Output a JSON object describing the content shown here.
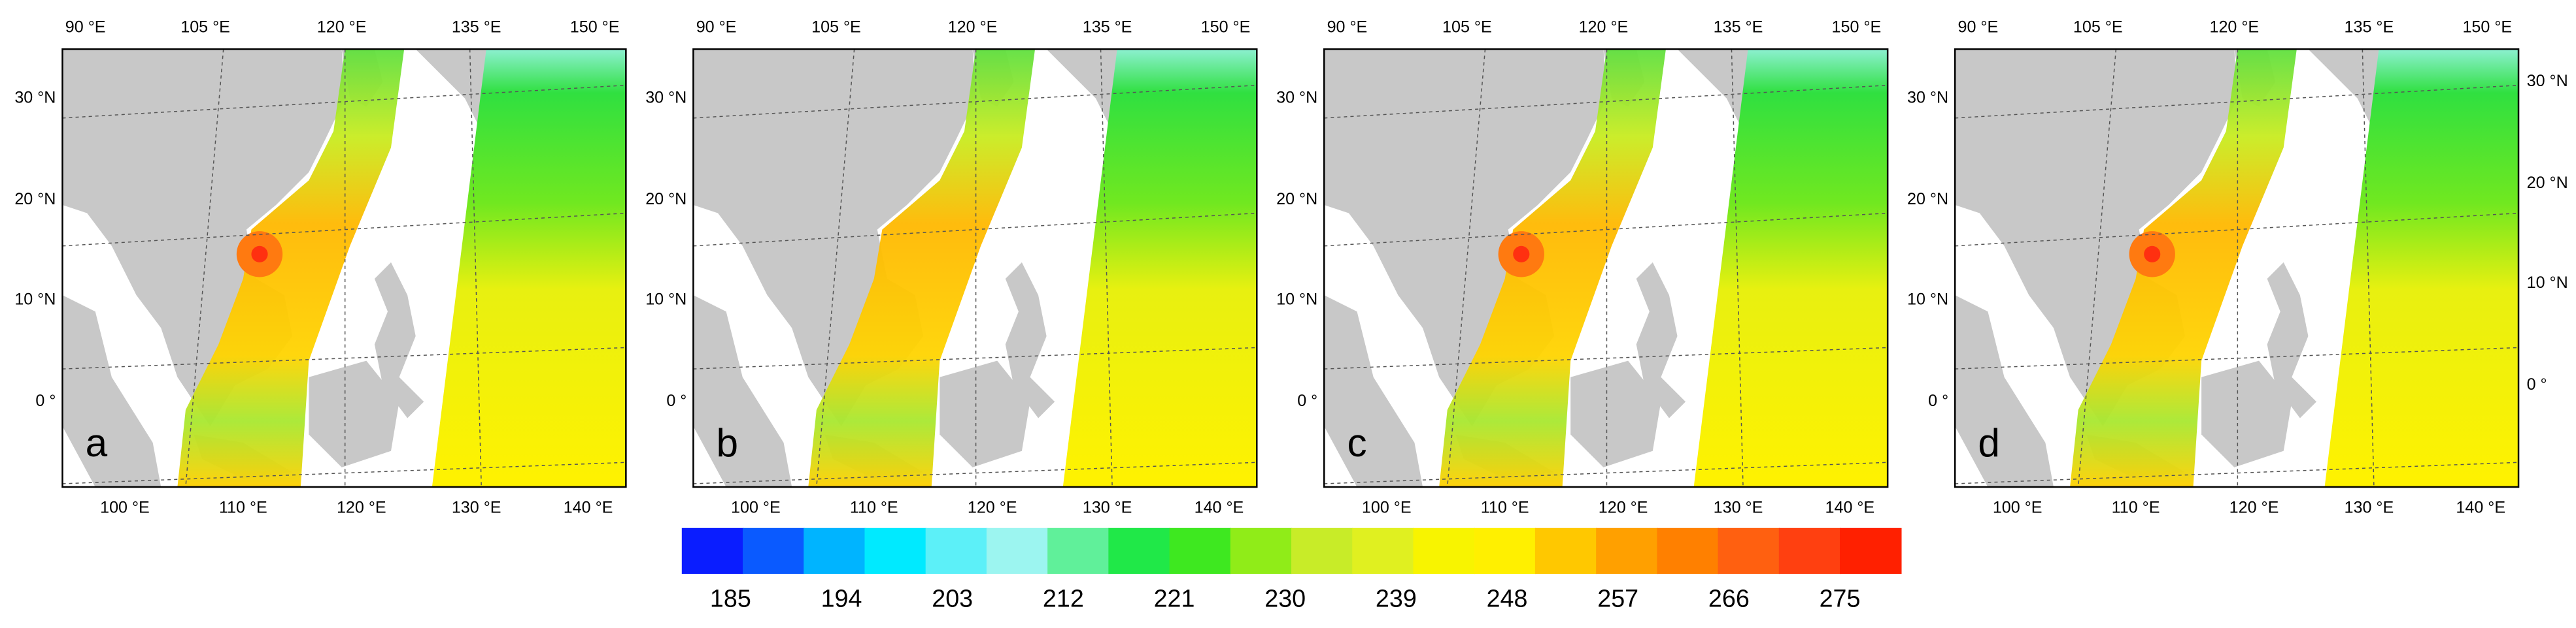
{
  "panels": [
    {
      "label": "a"
    },
    {
      "label": "b"
    },
    {
      "label": "c"
    },
    {
      "label": "d"
    }
  ],
  "axes": {
    "top": [
      "90 °E",
      "105 °E",
      "120 °E",
      "135 °E",
      "150 °E"
    ],
    "bottom": [
      "100 °E",
      "110 °E",
      "120 °E",
      "130 °E",
      "140 °E"
    ],
    "left": [
      "30 °N",
      "20 °N",
      "10 °N",
      "0 °"
    ],
    "right": [
      "30 °N",
      "20 °N",
      "10 °N",
      "0 °"
    ]
  },
  "colorbar": {
    "ticks": [
      185,
      194,
      203,
      212,
      221,
      230,
      239,
      248,
      257,
      266,
      275
    ],
    "colors": [
      "#0a1dff",
      "#0a5aff",
      "#00b4ff",
      "#00eaff",
      "#5cf0f8",
      "#9cf5f0",
      "#60f09a",
      "#20e848",
      "#3ee820",
      "#90ec18",
      "#c8ec28",
      "#e0f020",
      "#f8f400",
      "#fff000",
      "#ffc800",
      "#ffa000",
      "#ff8000",
      "#ff6010",
      "#ff4010",
      "#ff2000"
    ]
  }
}
